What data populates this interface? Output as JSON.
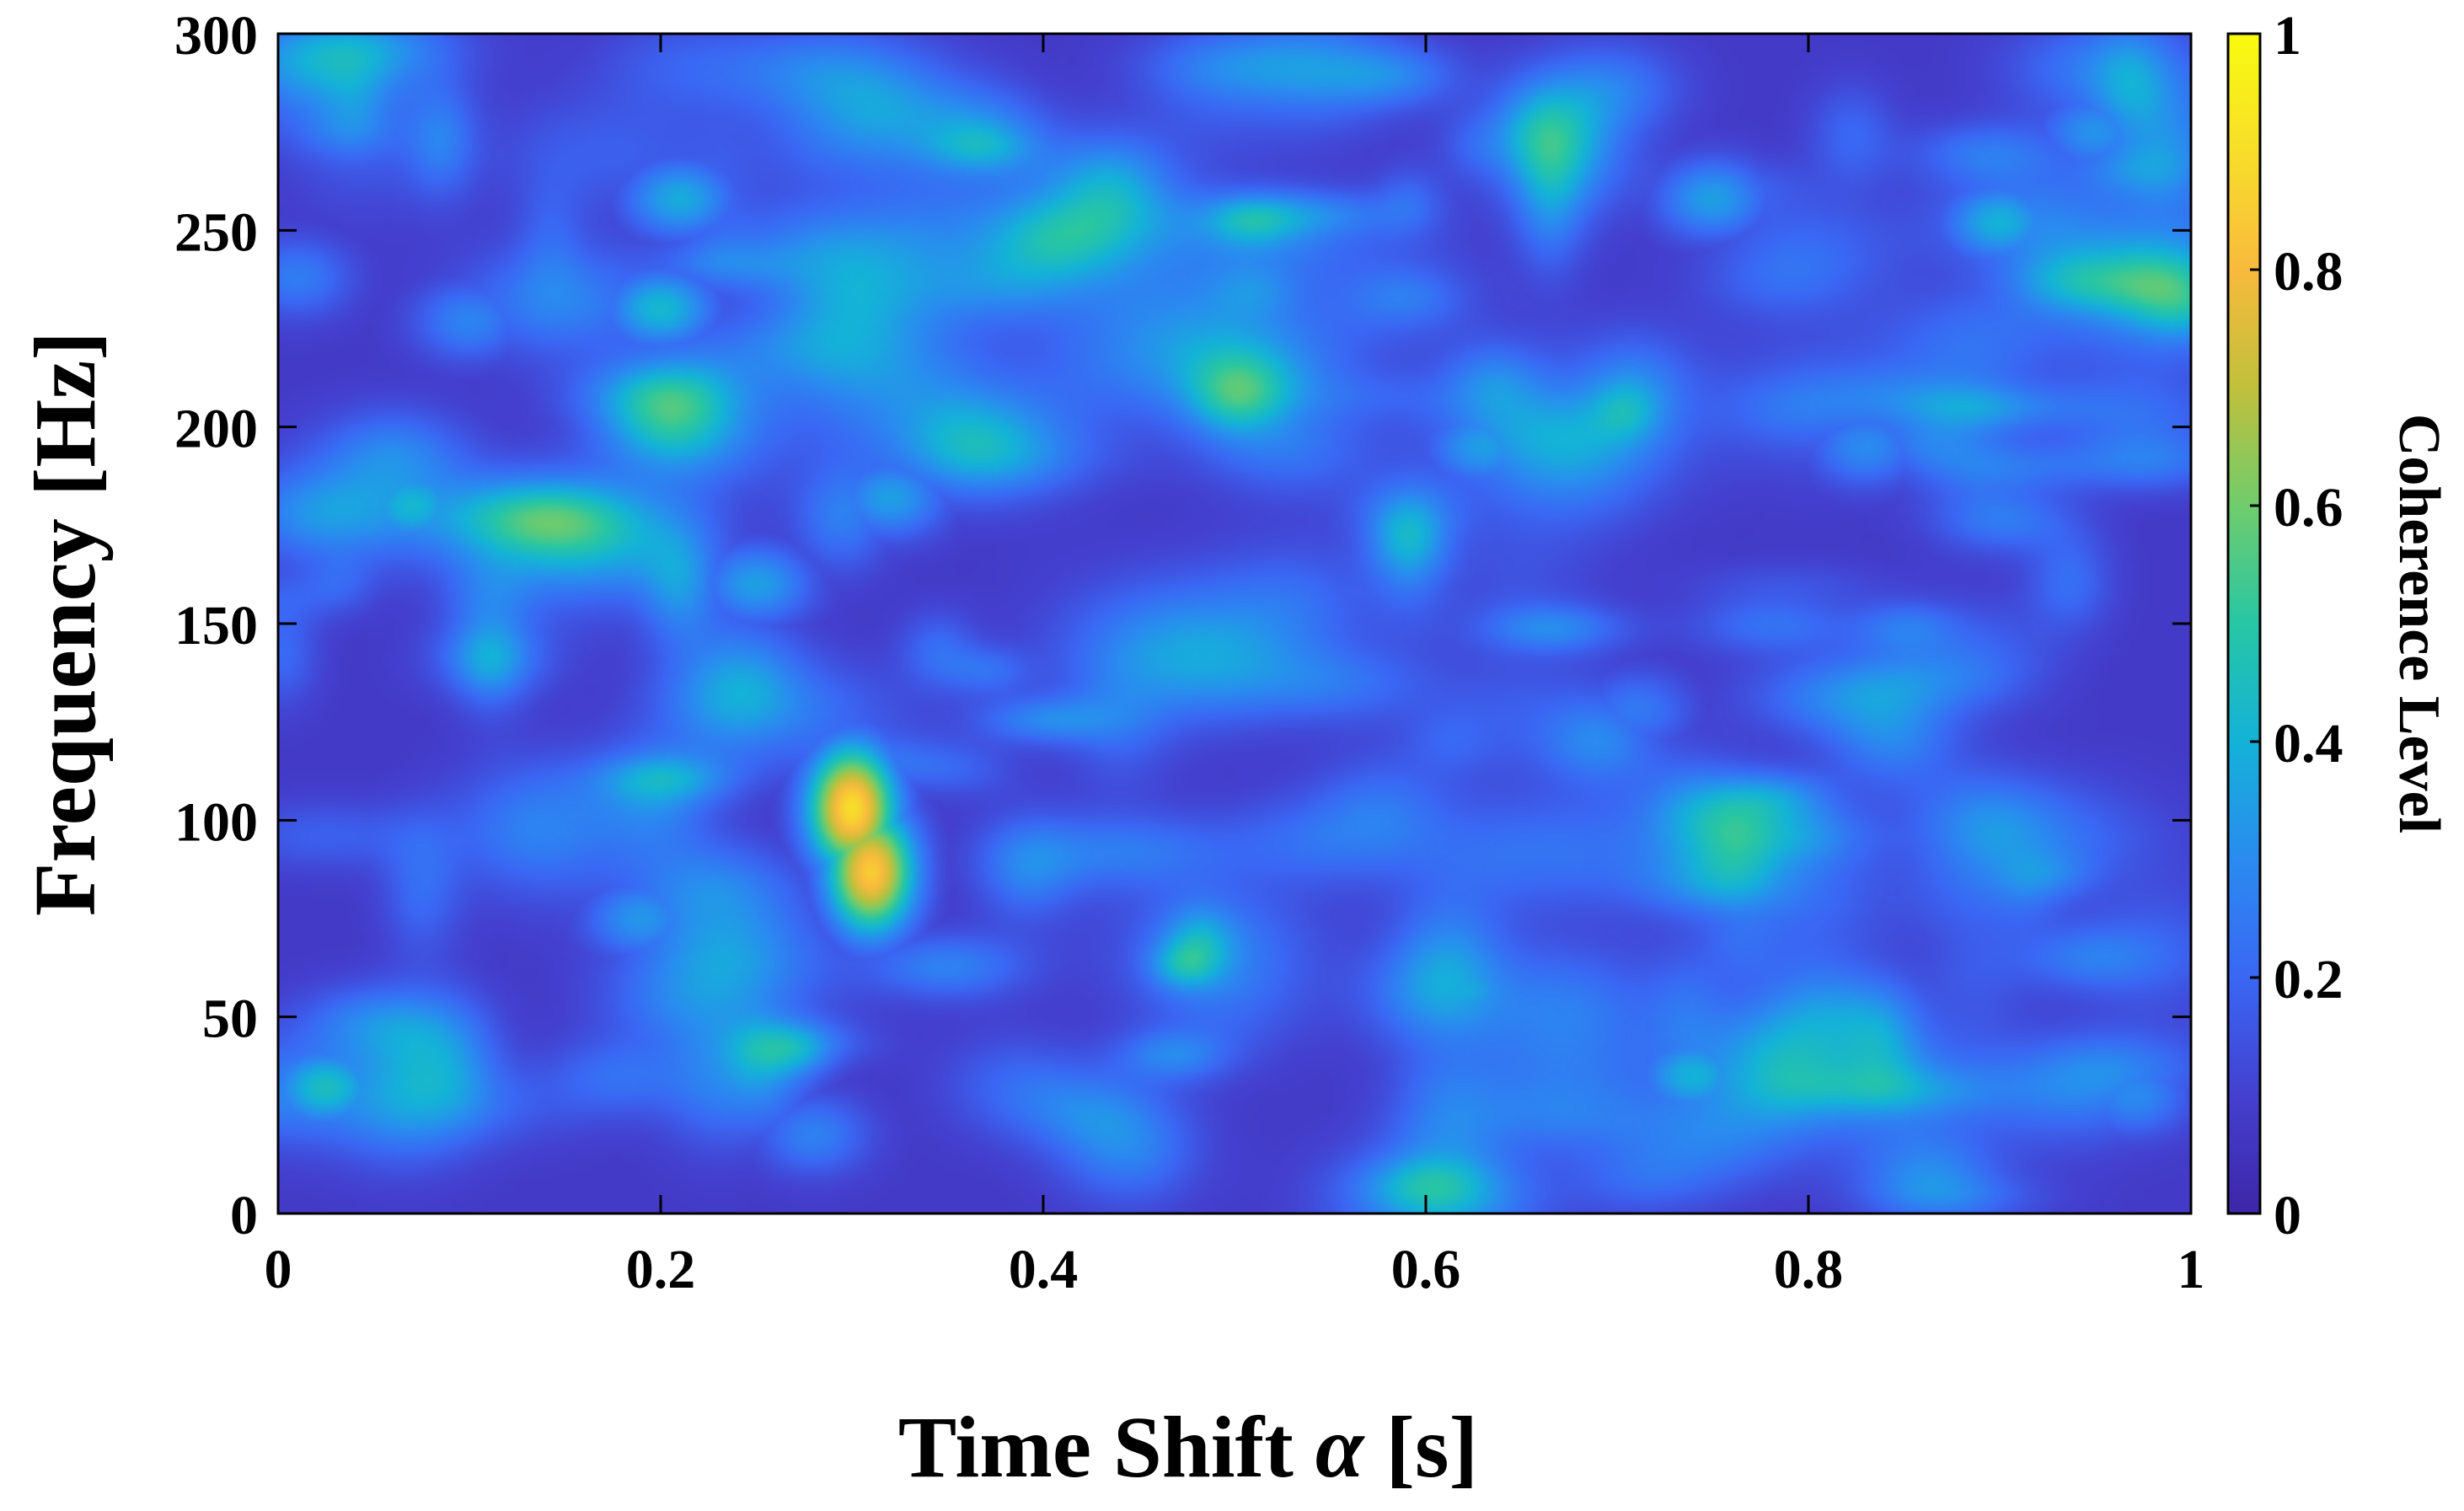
{
  "chart_data": {
    "type": "heatmap",
    "xlabel": "Time Shift α [s]",
    "ylabel": "Frequency [Hz]",
    "xlim": [
      0,
      1
    ],
    "ylim": [
      0,
      300
    ],
    "x_ticks": [
      "0",
      "0.2",
      "0.4",
      "0.6",
      "0.8",
      "1"
    ],
    "y_ticks": [
      "0",
      "50",
      "100",
      "150",
      "200",
      "250",
      "300"
    ],
    "colorbar": {
      "label": "Coherence Level",
      "range": [
        0,
        1
      ],
      "ticks": [
        "0",
        "0.2",
        "0.4",
        "0.6",
        "0.8",
        "1"
      ],
      "colormap": "parula",
      "colors": [
        "#3e26a8",
        "#4440cf",
        "#3a67f4",
        "#2a8bf0",
        "#14b2d8",
        "#27c6a4",
        "#70cc6c",
        "#c0c03b",
        "#f8ba3d",
        "#f7de2a",
        "#f9fb0e"
      ]
    },
    "background_level": 0.08,
    "hotspots": [
      {
        "x": 0.3,
        "y": 103,
        "value": 0.9
      },
      {
        "x": 0.31,
        "y": 87,
        "value": 0.85
      },
      {
        "x": 0.025,
        "y": 32,
        "value": 0.45
      },
      {
        "x": 0.07,
        "y": 180,
        "value": 0.42
      },
      {
        "x": 0.2,
        "y": 230,
        "value": 0.42
      },
      {
        "x": 0.21,
        "y": 258,
        "value": 0.38
      },
      {
        "x": 0.36,
        "y": 200,
        "value": 0.4
      },
      {
        "x": 0.32,
        "y": 182,
        "value": 0.35
      },
      {
        "x": 0.25,
        "y": 160,
        "value": 0.35
      },
      {
        "x": 0.19,
        "y": 75,
        "value": 0.33
      },
      {
        "x": 0.22,
        "y": 58,
        "value": 0.3
      },
      {
        "x": 0.62,
        "y": 57,
        "value": 0.38
      },
      {
        "x": 0.63,
        "y": 195,
        "value": 0.35
      },
      {
        "x": 0.74,
        "y": 35,
        "value": 0.4
      },
      {
        "x": 0.9,
        "y": 252,
        "value": 0.4
      },
      {
        "x": 0.75,
        "y": 258,
        "value": 0.35
      },
      {
        "x": 0.95,
        "y": 275,
        "value": 0.32
      },
      {
        "x": 0.52,
        "y": 148,
        "value": 0.3
      },
      {
        "x": 0.83,
        "y": 195,
        "value": 0.3
      },
      {
        "x": 0.97,
        "y": 30,
        "value": 0.3
      },
      {
        "x": 0.1,
        "y": 227,
        "value": 0.28
      },
      {
        "x": 0.01,
        "y": 238,
        "value": 0.26
      },
      {
        "x": 0.28,
        "y": 20,
        "value": 0.27
      },
      {
        "x": 0.88,
        "y": 10,
        "value": 0.22
      },
      {
        "x": 0.64,
        "y": 5,
        "value": 0.22
      },
      {
        "x": 0.71,
        "y": 128,
        "value": 0.25
      },
      {
        "x": 0.42,
        "y": 240,
        "value": 0.25
      },
      {
        "x": 0.4,
        "y": 270,
        "value": 0.24
      }
    ]
  }
}
